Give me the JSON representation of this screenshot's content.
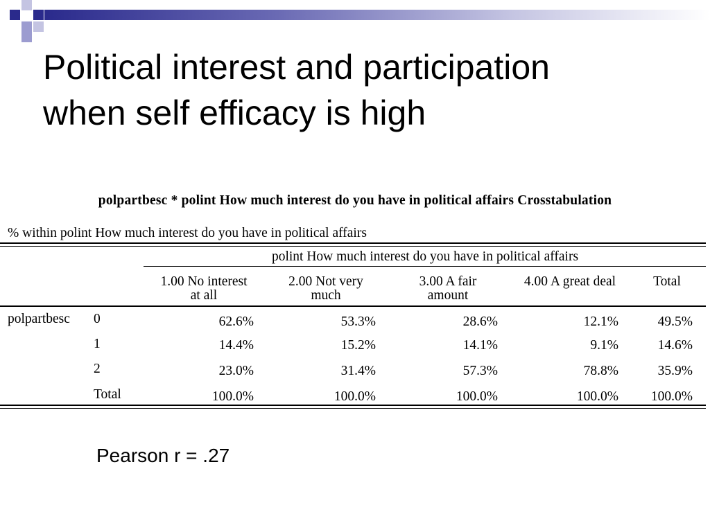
{
  "slide": {
    "title_line1": "Political interest and participation",
    "title_line2": "when self efficacy is high",
    "footer_note": "Pearson r = .27"
  },
  "crosstab": {
    "title": "polpartbesc * polint How much interest do you have in political affairs Crosstabulation",
    "subtitle": "% within polint How much interest do you have in political affairs",
    "column_group": "polint How much interest do you have in political affairs",
    "columns": [
      {
        "line1": "1.00 No interest",
        "line2": "at all"
      },
      {
        "line1": "2.00 Not very",
        "line2": "much"
      },
      {
        "line1": "3.00 A fair",
        "line2": "amount"
      },
      {
        "line1": "",
        "line2": "4.00 A great deal"
      },
      {
        "line1": "",
        "line2": "Total"
      }
    ],
    "row_variable": "polpartbesc",
    "rows": [
      {
        "label": "0",
        "values": [
          "62.6%",
          "53.3%",
          "28.6%",
          "12.1%",
          "49.5%"
        ]
      },
      {
        "label": "1",
        "values": [
          "14.4%",
          "15.2%",
          "14.1%",
          "9.1%",
          "14.6%"
        ]
      },
      {
        "label": "2",
        "values": [
          "23.0%",
          "31.4%",
          "57.3%",
          "78.8%",
          "35.9%"
        ]
      },
      {
        "label": "Total",
        "values": [
          "100.0%",
          "100.0%",
          "100.0%",
          "100.0%",
          "100.0%"
        ]
      }
    ]
  },
  "colors": {
    "header_bar": "#2a2a8c",
    "deco_light": "#9c9cd0",
    "text": "#000000"
  }
}
